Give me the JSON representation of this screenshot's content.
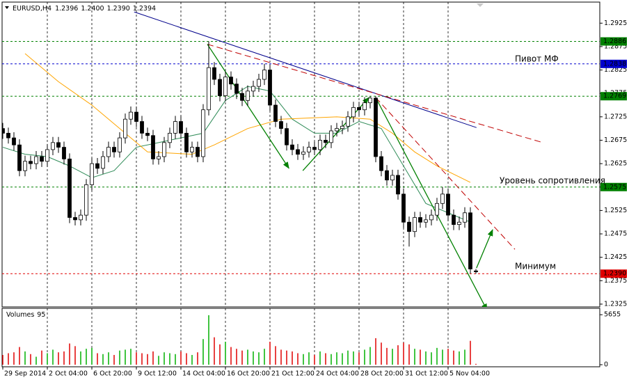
{
  "chart_data": {
    "type": "candlestick",
    "header": {
      "symbol": "EURUSD,H4",
      "values": [
        1.2396,
        {
          "value": 1.24,
          "label": "1.2400"
        },
        {
          "value": 1.239,
          "label": "1.2390"
        },
        1.2394
      ]
    },
    "categories": [
      "29 Sep 2014",
      null,
      null,
      null,
      null,
      null,
      null,
      null,
      "2 Oct 04:00",
      null,
      null,
      null,
      null,
      null,
      null,
      null,
      "6 Oct 20:00",
      null,
      null,
      null,
      null,
      null,
      null,
      null,
      "9 Oct 12:00",
      null,
      null,
      null,
      null,
      null,
      null,
      null,
      "14 Oct 04:00",
      null,
      null,
      null,
      null,
      null,
      null,
      null,
      "16 Oct 20:00",
      null,
      null,
      null,
      null,
      null,
      null,
      null,
      "21 Oct 12:00",
      null,
      null,
      null,
      null,
      null,
      null,
      null,
      "24 Oct 04:00",
      null,
      null,
      null,
      null,
      null,
      null,
      null,
      "28 Oct 20:00",
      null,
      null,
      null,
      null,
      null,
      null,
      null,
      "31 Oct 12:00",
      null,
      null,
      null,
      null,
      null,
      null,
      null,
      "5 Nov 04:00",
      null,
      null,
      null,
      null,
      null
    ],
    "ohlc": [
      [
        1.27,
        1.2712,
        1.2678,
        1.269
      ],
      [
        1.269,
        1.2702,
        1.2668,
        1.268
      ],
      [
        1.268,
        1.2692,
        1.2653,
        1.2665
      ],
      [
        1.2665,
        1.2677,
        1.2598,
        1.261
      ],
      [
        1.261,
        1.2642,
        1.2598,
        1.263
      ],
      [
        1.263,
        1.2642,
        1.2613,
        1.2625
      ],
      [
        1.2625,
        1.2652,
        1.2613,
        1.264
      ],
      [
        1.264,
        1.2652,
        1.2618,
        1.263
      ],
      [
        1.263,
        1.2667,
        1.2618,
        1.2655
      ],
      [
        1.2655,
        1.2682,
        1.2643,
        1.267
      ],
      [
        1.267,
        1.2682,
        1.2648,
        1.266
      ],
      [
        1.266,
        1.2672,
        1.2623,
        1.2635
      ],
      [
        1.2635,
        1.2647,
        1.2498,
        1.251
      ],
      [
        1.251,
        1.2522,
        1.2493,
        1.2505
      ],
      [
        1.2505,
        1.2527,
        1.2493,
        1.2515
      ],
      [
        1.2515,
        1.2592,
        1.2503,
        1.258
      ],
      [
        1.258,
        1.2637,
        1.2568,
        1.2625
      ],
      [
        1.2625,
        1.2637,
        1.2603,
        1.2615
      ],
      [
        1.2615,
        1.2652,
        1.2603,
        1.264
      ],
      [
        1.264,
        1.2672,
        1.2628,
        1.266
      ],
      [
        1.266,
        1.2672,
        1.2638,
        1.265
      ],
      [
        1.265,
        1.2692,
        1.2638,
        1.268
      ],
      [
        1.268,
        1.2732,
        1.2668,
        1.272
      ],
      [
        1.272,
        1.2747,
        1.2708,
        1.2735
      ],
      [
        1.2735,
        1.2747,
        1.2703,
        1.2715
      ],
      [
        1.2715,
        1.2727,
        1.2678,
        1.269
      ],
      [
        1.269,
        1.2702,
        1.2673,
        1.2685
      ],
      [
        1.2685,
        1.2697,
        1.2623,
        1.2635
      ],
      [
        1.2635,
        1.2652,
        1.2623,
        1.264
      ],
      [
        1.264,
        1.2682,
        1.2628,
        1.267
      ],
      [
        1.267,
        1.2702,
        1.2658,
        1.269
      ],
      [
        1.269,
        1.2727,
        1.2678,
        1.2715
      ],
      [
        1.2715,
        1.2727,
        1.2678,
        1.269
      ],
      [
        1.269,
        1.2702,
        1.2638,
        1.265
      ],
      [
        1.265,
        1.2672,
        1.2638,
        1.266
      ],
      [
        1.266,
        1.2672,
        1.2628,
        1.264
      ],
      [
        1.264,
        1.2752,
        1.2628,
        1.274
      ],
      [
        1.274,
        1.2886,
        1.2728,
        1.283
      ],
      [
        1.283,
        1.2842,
        1.2793,
        1.2805
      ],
      [
        1.2805,
        1.2817,
        1.2758,
        1.277
      ],
      [
        1.277,
        1.2822,
        1.2758,
        1.281
      ],
      [
        1.281,
        1.2822,
        1.2783,
        1.2795
      ],
      [
        1.2795,
        1.2807,
        1.2763,
        1.2775
      ],
      [
        1.2775,
        1.2787,
        1.2748,
        1.276
      ],
      [
        1.276,
        1.2792,
        1.2748,
        1.278
      ],
      [
        1.278,
        1.2802,
        1.2768,
        1.279
      ],
      [
        1.279,
        1.2817,
        1.2778,
        1.2805
      ],
      [
        1.2805,
        1.2838,
        1.2793,
        1.2825
      ],
      [
        1.2825,
        1.2837,
        1.2738,
        1.275
      ],
      [
        1.275,
        1.2762,
        1.2703,
        1.2715
      ],
      [
        1.2715,
        1.2727,
        1.2688,
        1.27
      ],
      [
        1.27,
        1.2712,
        1.2653,
        1.2665
      ],
      [
        1.2665,
        1.2677,
        1.2643,
        1.2655
      ],
      [
        1.2655,
        1.2667,
        1.2633,
        1.2645
      ],
      [
        1.2645,
        1.2662,
        1.2633,
        1.265
      ],
      [
        1.265,
        1.2672,
        1.2638,
        1.266
      ],
      [
        1.266,
        1.2672,
        1.2643,
        1.2655
      ],
      [
        1.2655,
        1.2687,
        1.2643,
        1.2675
      ],
      [
        1.2675,
        1.2687,
        1.2658,
        1.267
      ],
      [
        1.267,
        1.2707,
        1.2658,
        1.2695
      ],
      [
        1.2695,
        1.2712,
        1.2683,
        1.27
      ],
      [
        1.27,
        1.2717,
        1.2688,
        1.2705
      ],
      [
        1.2705,
        1.2737,
        1.2693,
        1.2725
      ],
      [
        1.2725,
        1.2757,
        1.2713,
        1.2745
      ],
      [
        1.2745,
        1.2757,
        1.2728,
        1.274
      ],
      [
        1.274,
        1.2767,
        1.2728,
        1.2755
      ],
      [
        1.2755,
        1.2769,
        1.2743,
        1.2765
      ],
      [
        1.2765,
        1.2769,
        1.2628,
        1.264
      ],
      [
        1.264,
        1.2652,
        1.2598,
        1.261
      ],
      [
        1.261,
        1.2622,
        1.2578,
        1.259
      ],
      [
        1.259,
        1.2612,
        1.2578,
        1.26
      ],
      [
        1.26,
        1.2612,
        1.2548,
        1.256
      ],
      [
        1.256,
        1.2572,
        1.2488,
        1.25
      ],
      [
        1.25,
        1.2512,
        1.2448,
        1.248
      ],
      [
        1.248,
        1.2522,
        1.2468,
        1.251
      ],
      [
        1.251,
        1.2522,
        1.2488,
        1.25
      ],
      [
        1.25,
        1.2517,
        1.2488,
        1.2505
      ],
      [
        1.2505,
        1.2527,
        1.2493,
        1.2515
      ],
      [
        1.2515,
        1.2552,
        1.2503,
        1.254
      ],
      [
        1.254,
        1.2575,
        1.2528,
        1.256
      ],
      [
        1.256,
        1.2572,
        1.2503,
        1.2515
      ],
      [
        1.2515,
        1.2527,
        1.2483,
        1.2495
      ],
      [
        1.2495,
        1.2512,
        1.2483,
        1.25
      ],
      [
        1.25,
        1.2532,
        1.2488,
        1.252
      ],
      [
        1.252,
        1.2532,
        1.239,
        1.24
      ],
      [
        1.2396,
        1.24,
        1.239,
        1.2394
      ]
    ],
    "up_color": "#ffffff",
    "down_color": "#000000",
    "ylim": [
      1.2319,
      1.297
    ],
    "yticks": [
      1.2325,
      1.2375,
      1.2425,
      1.2475,
      1.2525,
      1.2575,
      1.2625,
      1.2675,
      1.2725,
      1.2775,
      1.2825,
      1.2875,
      1.2925
    ],
    "grid": true,
    "lines": [
      {
        "color": "#2e8b57",
        "style": "solid",
        "arrow": false,
        "x": [
          0,
          4,
          8,
          12,
          16,
          20,
          24,
          28,
          32,
          36,
          40,
          44,
          48,
          52,
          56,
          60,
          64,
          68,
          72,
          76,
          80,
          84
        ],
        "y": [
          1.266,
          1.2645,
          1.264,
          1.262,
          1.2595,
          1.261,
          1.266,
          1.267,
          1.268,
          1.269,
          1.276,
          1.279,
          1.278,
          1.272,
          1.269,
          1.269,
          1.2715,
          1.27,
          1.262,
          1.254,
          1.252,
          1.25
        ]
      },
      {
        "color": "#ffa500",
        "style": "solid",
        "arrow": false,
        "x": [
          4,
          10,
          16,
          22,
          26,
          34,
          38,
          44,
          50,
          60,
          66,
          70,
          74,
          78,
          84
        ],
        "y": [
          1.286,
          1.28,
          1.275,
          1.269,
          1.265,
          1.2645,
          1.2665,
          1.27,
          1.272,
          1.2725,
          1.272,
          1.269,
          1.265,
          1.262,
          1.2585
        ]
      },
      {
        "color": "#00008b",
        "style": "solid",
        "arrow": false,
        "x": [
          23.6,
          85.1
        ],
        "y": [
          1.2949,
          1.2702
        ]
      },
      {
        "color": "#c00000",
        "style": "dashed",
        "arrow": false,
        "x": [
          36.75,
          97
        ],
        "y": [
          1.288,
          1.267
        ]
      },
      {
        "color": "#c00000",
        "style": "dashed",
        "arrow": false,
        "x": [
          67,
          92
        ],
        "y": [
          1.2766,
          1.2442
        ]
      },
      {
        "color": "#008000",
        "style": "solid",
        "arrow": true,
        "x": [
          36.75,
          51.4
        ],
        "y": [
          1.288,
          1.2615
        ]
      },
      {
        "color": "#008000",
        "style": "solid",
        "arrow": true,
        "x": [
          53.9,
          65.75
        ],
        "y": [
          1.261,
          1.2766
        ]
      },
      {
        "color": "#008000",
        "style": "solid",
        "arrow": true,
        "x": [
          67,
          87
        ],
        "y": [
          1.2766,
          1.2312
        ]
      },
      {
        "color": "#008000",
        "style": "solid",
        "arrow": true,
        "x": [
          85.1,
          88
        ],
        "y": [
          1.2402,
          1.2484
        ]
      }
    ],
    "levels": [
      {
        "price": 1.2886,
        "color": "#008000"
      },
      {
        "price": 1.2838,
        "color": "#0000cd"
      },
      {
        "price": 1.2769,
        "color": "#008000"
      },
      {
        "price": 1.2575,
        "color": "#008000"
      },
      {
        "price": {
          "value": 1.239,
          "label": "1.2390"
        },
        "color": "#e00000"
      }
    ],
    "annotations": [
      "Пивот МФ",
      "Уровень сопротивления",
      "Минимум"
    ],
    "volume_label": "Volumes",
    "volumes": [
      1100,
      1300,
      1400,
      2000,
      1500,
      1200,
      900,
      1600,
      1300,
      1700,
      1400,
      1500,
      2400,
      2100,
      1500,
      1800,
      1900,
      1300,
      1200,
      1400,
      1100,
      1600,
      1700,
      1800,
      1400,
      1300,
      1200,
      1500,
      1000,
      1400,
      1300,
      1200,
      1500,
      1300,
      1100,
      1400,
      2900,
      5600,
      3100,
      2300,
      2600,
      2000,
      1800,
      1600,
      1700,
      1500,
      1400,
      1800,
      2600,
      2100,
      1700,
      1600,
      1500,
      1300,
      1200,
      1400,
      1100,
      1500,
      1300,
      1200,
      1400,
      1300,
      1600,
      1500,
      1400,
      1700,
      2000,
      3000,
      2500,
      1900,
      1800,
      2200,
      2500,
      2300,
      1800,
      1700,
      1500,
      1400,
      1900,
      1700,
      1800,
      1600,
      1500,
      1700,
      2700,
      95
    ],
    "volume_ylim": [
      0,
      6300
    ],
    "volume_yticks": [
      0,
      5655
    ]
  }
}
